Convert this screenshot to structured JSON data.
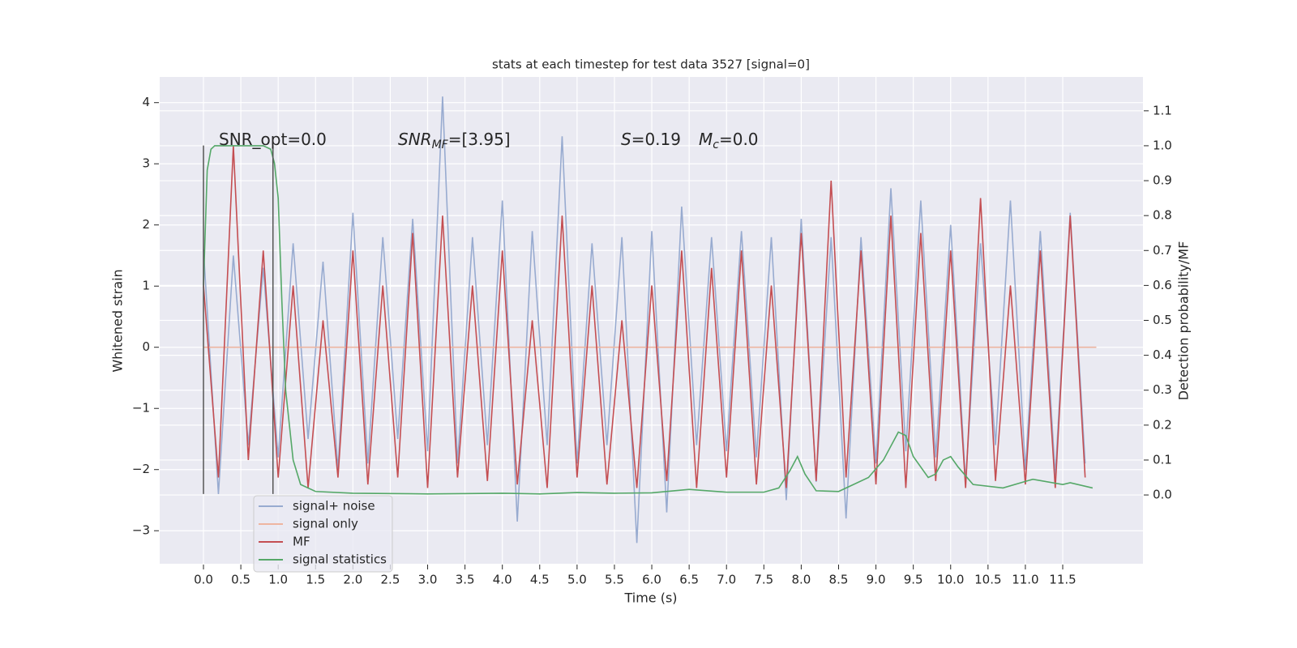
{
  "chart_data": {
    "type": "line",
    "title": "stats at each timestep for test data 3527 [signal=0]",
    "xlabel": "Time (s)",
    "ylabel": "Whitened strain",
    "y2label": "Detection probability/MF",
    "xlim": [
      -0.586,
      12.574
    ],
    "ylim": [
      -3.54,
      4.42
    ],
    "y2lim": [
      -0.197,
      1.197
    ],
    "xticks": [
      {
        "value": 0,
        "label": "0.0"
      },
      0.5,
      {
        "value": 1,
        "label": "1.0"
      },
      1.5,
      {
        "value": 2,
        "label": "2.0"
      },
      2.5,
      {
        "value": 3,
        "label": "3.0"
      },
      3.5,
      {
        "value": 4,
        "label": "4.0"
      },
      4.5,
      {
        "value": 5,
        "label": "5.0"
      },
      5.5,
      {
        "value": 6,
        "label": "6.0"
      },
      6.5,
      {
        "value": 7,
        "label": "7.0"
      },
      7.5,
      {
        "value": 8,
        "label": "8.0"
      },
      8.5,
      {
        "value": 9,
        "label": "9.0"
      },
      9.5,
      {
        "value": 10,
        "label": "10.0"
      },
      10.5,
      {
        "value": 11,
        "label": "11.0"
      },
      11.5
    ],
    "yticks": [
      4,
      3,
      2,
      1,
      0,
      {
        "value": -1,
        "label": "−1"
      },
      {
        "value": -2,
        "label": "−2"
      },
      {
        "value": -3,
        "label": "−3"
      }
    ],
    "y2ticks": [
      {
        "value": 0,
        "label": "0.0"
      },
      0.1,
      0.2,
      0.3,
      0.4,
      0.5,
      0.6,
      0.7,
      0.8,
      0.9,
      {
        "value": 1,
        "label": "1.0"
      },
      1.1
    ],
    "grid": true,
    "background": "#eaeaf2",
    "x": [
      0,
      0.2,
      0.4,
      0.6,
      0.8,
      1,
      1.2,
      1.4,
      1.6,
      1.8,
      2,
      2.2,
      2.4,
      2.6,
      2.8,
      3,
      3.2,
      3.4,
      3.6,
      3.8,
      4,
      4.2,
      4.4,
      4.6,
      4.8,
      5,
      5.2,
      5.4,
      5.6,
      5.8,
      6,
      6.2,
      6.4,
      6.6,
      6.8,
      7,
      7.2,
      7.4,
      7.6,
      7.8,
      8,
      8.2,
      8.4,
      8.6,
      8.8,
      9,
      9.2,
      9.4,
      9.6,
      9.8,
      10,
      10.2,
      10.4,
      10.6,
      10.8,
      11,
      11.2,
      11.4,
      11.6,
      11.8
    ],
    "series": [
      {
        "name": "signal+ noise",
        "color": "#98abd0",
        "values": [
          1.6,
          -2.4,
          1.5,
          -1.6,
          1.3,
          -1.8,
          1.7,
          -1.5,
          1.4,
          -2.0,
          2.2,
          -1.9,
          1.8,
          -1.5,
          2.1,
          -1.7,
          4.1,
          -1.9,
          1.8,
          -1.6,
          2.4,
          -2.85,
          1.9,
          -1.6,
          3.45,
          -1.9,
          1.7,
          -1.6,
          1.8,
          -3.2,
          1.9,
          -2.7,
          2.3,
          -1.6,
          1.8,
          -1.7,
          1.9,
          -1.8,
          1.8,
          -2.5,
          2.1,
          -2.2,
          1.8,
          -2.8,
          1.8,
          -1.9,
          2.6,
          -1.7,
          2.4,
          -1.8,
          2.0,
          -2.2,
          1.7,
          -1.6,
          2.4,
          -2.0,
          1.9,
          -2.1,
          2.2,
          -1.9
        ]
      },
      {
        "name": "signal only",
        "color": "#eeb5a0",
        "x": [
          0,
          11.95
        ],
        "values": [
          0,
          0
        ]
      },
      {
        "name": "MF",
        "color": "#c44e52",
        "axis": "y2",
        "values": [
          0.6,
          0.05,
          1.0,
          0.1,
          0.7,
          0.05,
          0.6,
          0.02,
          0.5,
          0.05,
          0.7,
          0.03,
          0.6,
          0.05,
          0.75,
          0.02,
          0.8,
          0.05,
          0.6,
          0.04,
          0.7,
          0.03,
          0.5,
          0.02,
          0.8,
          0.05,
          0.6,
          0.03,
          0.5,
          0.02,
          0.6,
          0.04,
          0.7,
          0.02,
          0.65,
          0.05,
          0.7,
          0.03,
          0.6,
          0.02,
          0.75,
          0.04,
          0.9,
          0.05,
          0.7,
          0.03,
          0.8,
          0.02,
          0.75,
          0.04,
          0.7,
          0.02,
          0.85,
          0.04,
          0.6,
          0.03,
          0.7,
          0.02,
          0.8,
          0.05
        ]
      },
      {
        "name": "signal statistics",
        "color": "#55a868",
        "axis": "y2",
        "x": [
          0,
          0.05,
          0.1,
          0.15,
          0.2,
          0.3,
          0.5,
          0.7,
          0.8,
          0.9,
          0.95,
          1.0,
          1.05,
          1.1,
          1.2,
          1.3,
          1.5,
          2,
          3,
          4,
          4.5,
          5,
          5.5,
          6,
          6.5,
          7,
          7.5,
          7.7,
          7.85,
          7.95,
          8.05,
          8.2,
          8.5,
          8.9,
          9.1,
          9.3,
          9.4,
          9.5,
          9.7,
          9.8,
          9.9,
          10.0,
          10.1,
          10.3,
          10.7,
          11.1,
          11.5,
          11.6,
          11.9
        ],
        "values": [
          0.6,
          0.93,
          0.99,
          1.0,
          1.0,
          1.0,
          1.0,
          1.0,
          1.0,
          0.99,
          0.95,
          0.85,
          0.55,
          0.3,
          0.1,
          0.03,
          0.01,
          0.005,
          0.003,
          0.005,
          0.003,
          0.007,
          0.005,
          0.006,
          0.016,
          0.008,
          0.008,
          0.02,
          0.07,
          0.11,
          0.06,
          0.012,
          0.01,
          0.05,
          0.1,
          0.18,
          0.17,
          0.11,
          0.05,
          0.06,
          0.1,
          0.11,
          0.08,
          0.03,
          0.02,
          0.045,
          0.03,
          0.035,
          0.02
        ]
      }
    ],
    "vlines": {
      "x": [
        0,
        0.93
      ],
      "ymin": -2.4,
      "ymax": 3.3,
      "color": "#555555"
    },
    "annotations": [
      [
        {
          "text": "SNR_opt=0.0"
        }
      ],
      [
        {
          "text": "SNR",
          "italic": true
        },
        {
          "text": "MF",
          "italic": true,
          "sub": true
        },
        {
          "text": "=[3.95]"
        }
      ],
      [
        {
          "text": "S",
          "italic": true
        },
        {
          "text": "=0.19"
        },
        {
          "text": "M",
          "italic": true
        },
        {
          "text": "c",
          "italic": true,
          "sub": true
        },
        {
          "text": "=0.0"
        }
      ]
    ]
  }
}
